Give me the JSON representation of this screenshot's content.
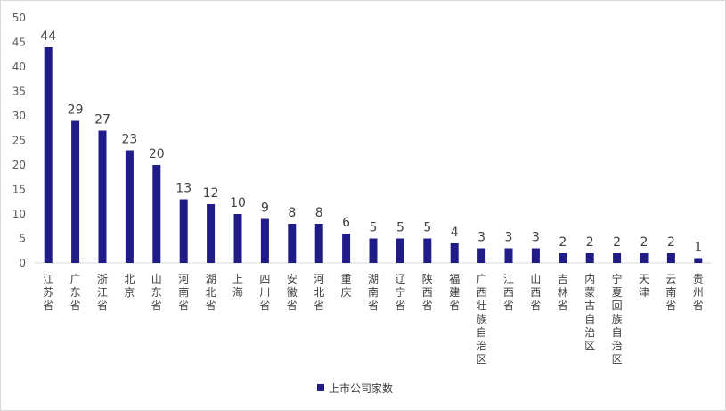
{
  "chart_data": {
    "type": "bar",
    "categories": [
      "江苏省",
      "广东省",
      "浙江省",
      "北京",
      "山东省",
      "河南省",
      "湖北省",
      "上海",
      "四川省",
      "安徽省",
      "河北省",
      "重庆",
      "湖南省",
      "辽宁省",
      "陕西省",
      "福建省",
      "广西壮族自治区",
      "江西省",
      "山西省",
      "吉林省",
      "内蒙古自治区",
      "宁夏回族自治区",
      "天津",
      "云南省",
      "贵州省"
    ],
    "series": [
      {
        "name": "上市公司家数",
        "values": [
          44,
          29,
          27,
          23,
          20,
          13,
          12,
          10,
          9,
          8,
          8,
          6,
          5,
          5,
          5,
          4,
          3,
          3,
          3,
          2,
          2,
          2,
          2,
          2,
          1
        ]
      }
    ],
    "ylim": [
      0,
      50
    ],
    "yticks": [
      0,
      5,
      10,
      15,
      20,
      25,
      30,
      35,
      40,
      45,
      50
    ],
    "grid": false,
    "legend": "bottom",
    "colors": {
      "bar": "#1f1b87",
      "axis": "#d9d9d9"
    }
  }
}
